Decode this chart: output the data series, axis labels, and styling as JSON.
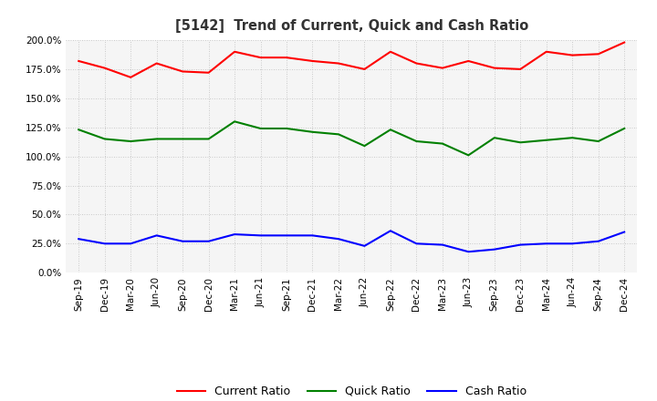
{
  "title": "[5142]  Trend of Current, Quick and Cash Ratio",
  "x_labels": [
    "Sep-19",
    "Dec-19",
    "Mar-20",
    "Jun-20",
    "Sep-20",
    "Dec-20",
    "Mar-21",
    "Jun-21",
    "Sep-21",
    "Dec-21",
    "Mar-22",
    "Jun-22",
    "Sep-22",
    "Dec-22",
    "Mar-23",
    "Jun-23",
    "Sep-23",
    "Dec-23",
    "Mar-24",
    "Jun-24",
    "Sep-24",
    "Dec-24"
  ],
  "current_ratio": [
    182,
    176,
    168,
    180,
    173,
    172,
    190,
    185,
    185,
    182,
    180,
    175,
    190,
    180,
    176,
    182,
    176,
    175,
    190,
    187,
    188,
    198
  ],
  "quick_ratio": [
    123,
    115,
    113,
    115,
    115,
    115,
    130,
    124,
    124,
    121,
    119,
    109,
    123,
    113,
    111,
    101,
    116,
    112,
    114,
    116,
    113,
    124
  ],
  "cash_ratio": [
    29,
    25,
    25,
    32,
    27,
    27,
    33,
    32,
    32,
    32,
    29,
    23,
    36,
    25,
    24,
    18,
    20,
    24,
    25,
    25,
    27,
    35
  ],
  "current_color": "#FF0000",
  "quick_color": "#008000",
  "cash_color": "#0000FF",
  "ylim": [
    0,
    200
  ],
  "yticks": [
    0,
    25,
    50,
    75,
    100,
    125,
    150,
    175,
    200
  ],
  "background_color": "#FFFFFF",
  "plot_bg_color": "#F5F5F5",
  "grid_color": "#BBBBBB",
  "title_color": "#333333"
}
